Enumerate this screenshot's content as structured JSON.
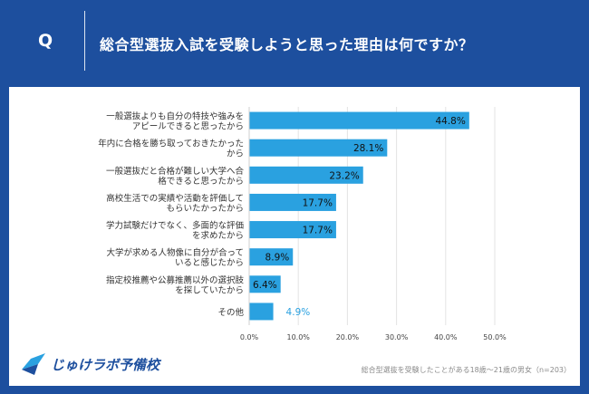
{
  "header": {
    "q_label": "Q",
    "question": "総合型選抜入試を受験しようと思った理由は何ですか？"
  },
  "logo": {
    "text": "じゅけラボ予備校"
  },
  "footnote": "総合型選抜を受験したことがある18歳～21歳の男女（n=203）",
  "colors": {
    "background": "#1d4f9e",
    "bar": "#2aa1e0",
    "outside_label": "#2aa1e0"
  },
  "chart_data": {
    "type": "bar",
    "orientation": "horizontal",
    "categories": [
      [
        "一般選抜よりも自分の特技や強みを",
        "アピールできると思ったから"
      ],
      [
        "年内に合格を勝ち取っておきたかった",
        "から"
      ],
      [
        "一般選抜だと合格が難しい大学へ合",
        "格できると思ったから"
      ],
      [
        "高校生活での実績や活動を評価して",
        "もらいたかったから"
      ],
      [
        "学力試験だけでなく、多面的な評価",
        "を求めたから"
      ],
      [
        "大学が求める人物像に自分が合って",
        "いると感じたから"
      ],
      [
        "指定校推薦や公募推薦以外の選択肢",
        "を探していたから"
      ],
      [
        "その他"
      ]
    ],
    "values": [
      44.8,
      28.1,
      23.2,
      17.7,
      17.7,
      8.9,
      6.4,
      4.9
    ],
    "value_labels": [
      "44.8%",
      "28.1%",
      "23.2%",
      "17.7%",
      "17.7%",
      "8.9%",
      "6.4%",
      "4.9%"
    ],
    "xlim": [
      0,
      50
    ],
    "xticks": [
      "0.0%",
      "10.0%",
      "20.0%",
      "30.0%",
      "40.0%",
      "50.0%"
    ],
    "xtick_values": [
      0,
      10,
      20,
      30,
      40,
      50
    ],
    "grid": true
  }
}
